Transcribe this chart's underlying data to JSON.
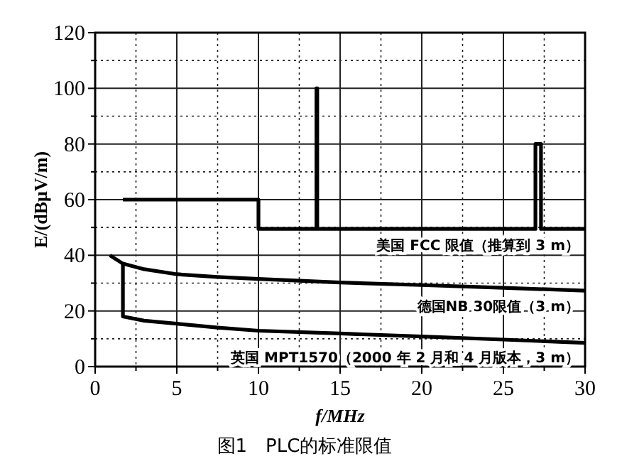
{
  "chart_data": {
    "type": "line",
    "xlabel": "f/MHz",
    "ylabel": "E/(dBμV/m)",
    "xlim": [
      0,
      30
    ],
    "xticks": [
      0,
      {
        "value": 2.5,
        "label": null
      },
      5,
      {
        "value": 7.5,
        "label": null
      },
      10,
      {
        "value": 12.5,
        "label": null
      },
      15,
      {
        "value": 17.5,
        "label": null
      },
      20,
      {
        "value": 22.5,
        "label": null
      },
      25,
      {
        "value": 27.5,
        "label": null
      },
      30
    ],
    "ylim": [
      0,
      120
    ],
    "yticks": [
      0,
      {
        "value": 10,
        "label": null
      },
      20,
      {
        "value": 30,
        "label": null
      },
      40,
      {
        "value": 50,
        "label": null
      },
      60,
      {
        "value": 70,
        "label": null
      },
      80,
      {
        "value": 90,
        "label": null
      },
      100,
      {
        "value": 110,
        "label": null
      },
      120
    ],
    "grid": true,
    "series": [
      {
        "color": "#000000",
        "x": [
          1.7,
          10,
          10,
          13.55,
          13.55,
          13.6,
          13.6,
          26.96,
          26.96,
          27.3,
          27.3,
          30
        ],
        "values": [
          60,
          60,
          49.5,
          49.5,
          100,
          100,
          49.5,
          49.5,
          80,
          80,
          49.5,
          49.5
        ]
      },
      {
        "color": "#000000",
        "x": [
          0.9,
          1.7,
          3,
          5,
          7.5,
          10,
          15,
          20,
          25,
          30
        ],
        "values": [
          40,
          37,
          35,
          33.2,
          32.2,
          31.5,
          30.2,
          29.3,
          28.3,
          27.3
        ]
      },
      {
        "color": "#000000",
        "x": [
          1.7,
          1.7,
          3,
          5,
          7.5,
          10,
          15,
          20,
          25,
          30
        ],
        "values": [
          37,
          18,
          16.5,
          15.4,
          14,
          12.9,
          11.9,
          10.8,
          9.7,
          8.5
        ]
      }
    ],
    "annotations": [
      "美国 FCC 限值（推算到 3 m）",
      "德国NB 30限值（3 m）",
      "英国 MPT1570（2000 年 2 月和 4 月版本，3 m）",
      "图1　PLC的标准限值"
    ]
  }
}
